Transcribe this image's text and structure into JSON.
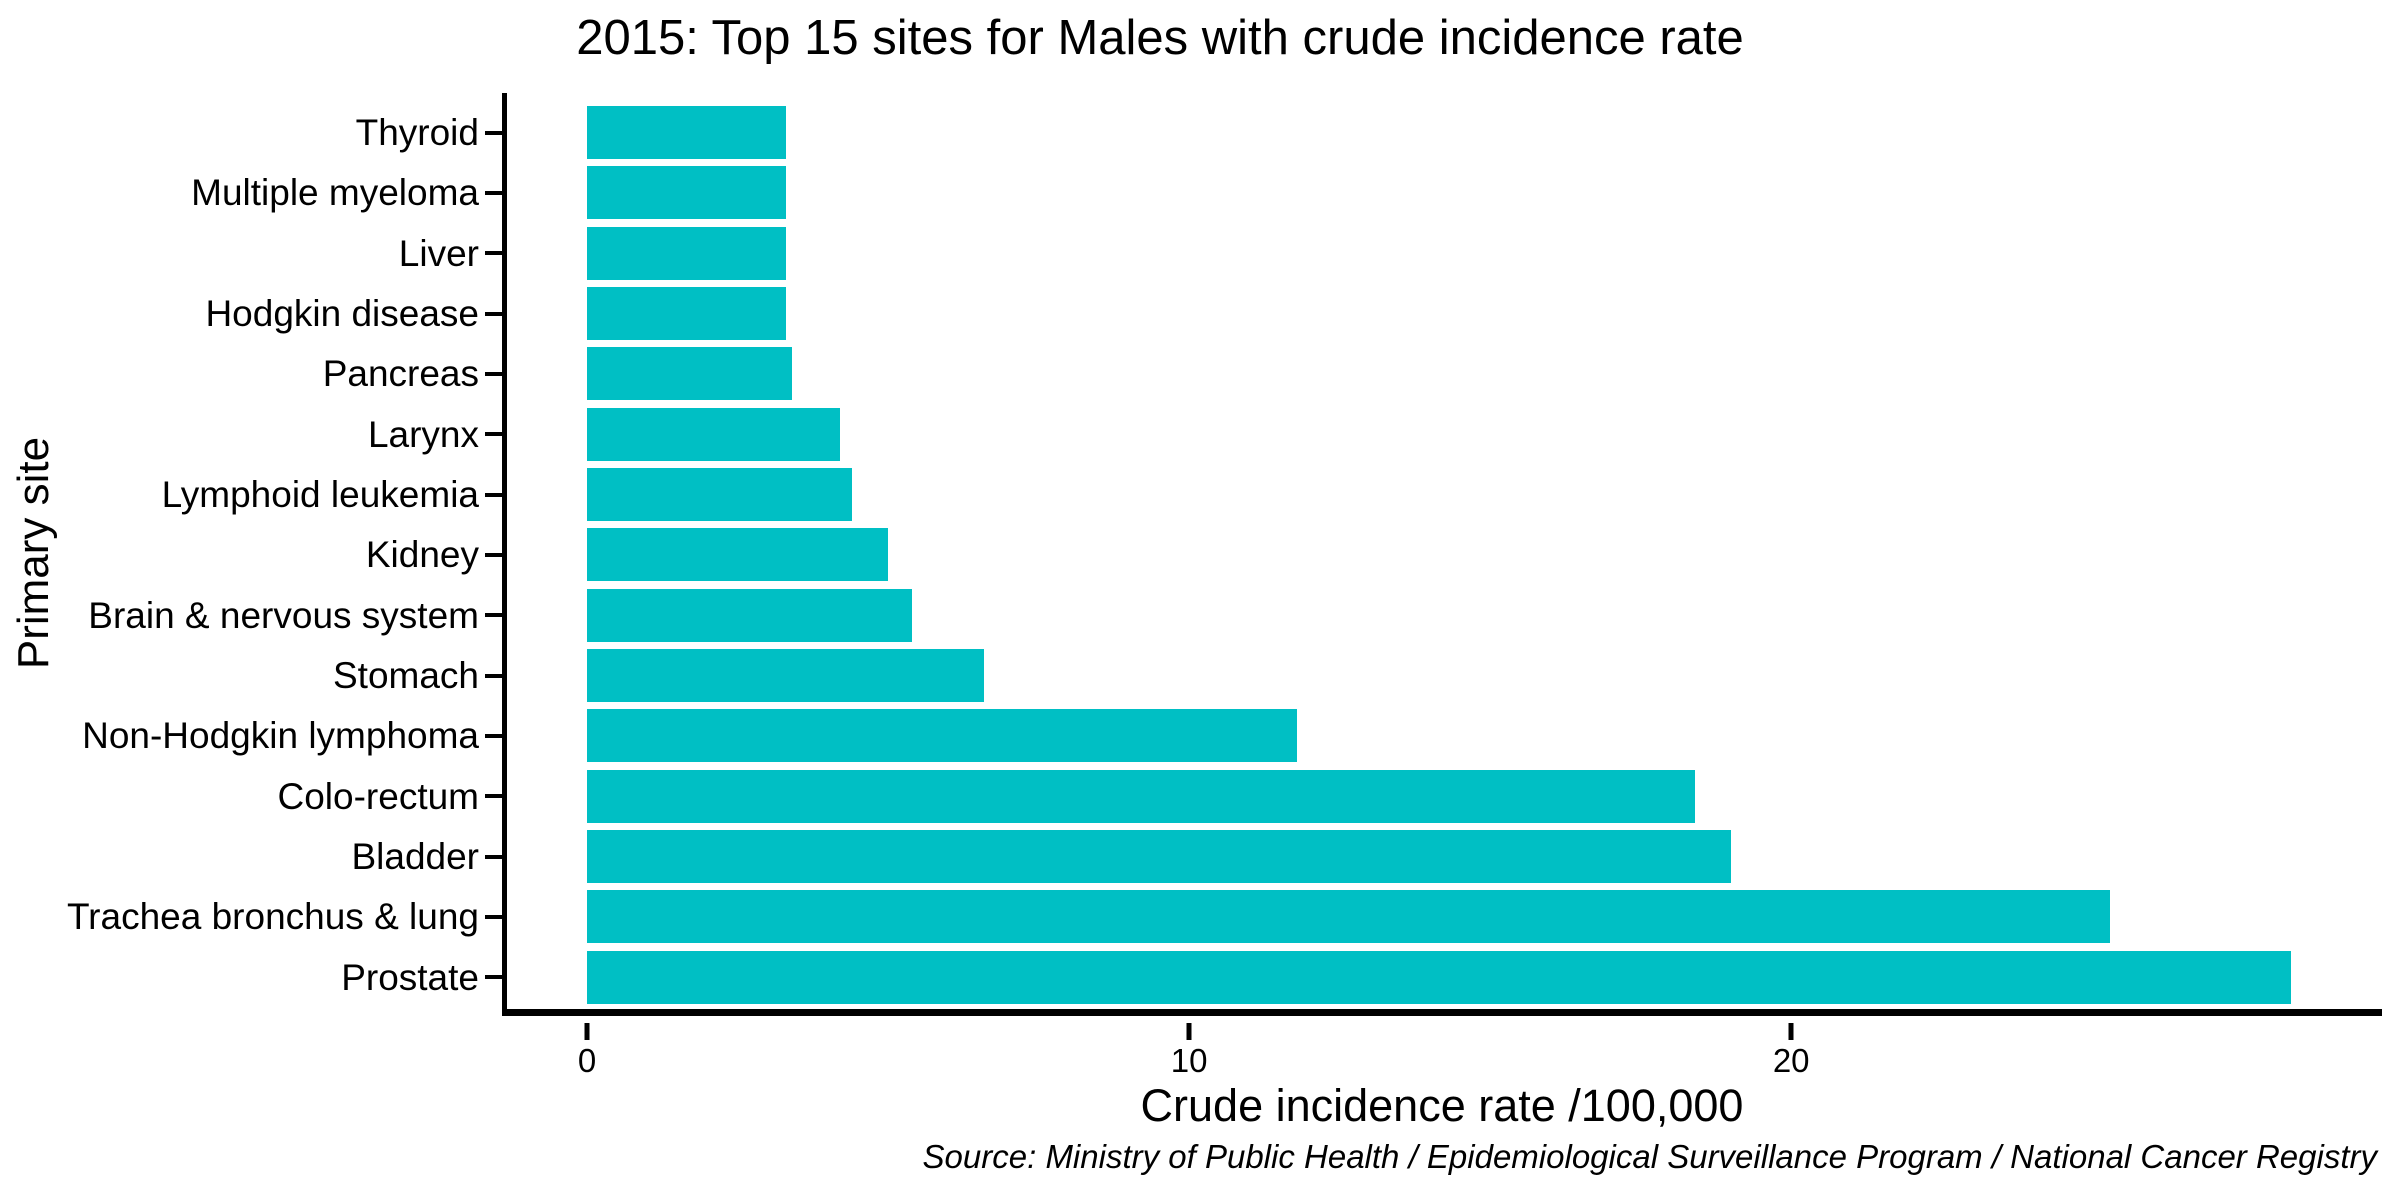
{
  "figure": {
    "title": "2015: Top 15 sites for Males with crude incidence rate",
    "source_note": "Source: Ministry of Public Health / Epidemiological Surveillance Program / National Cancer Registry"
  },
  "chart_data": {
    "type": "bar",
    "orientation": "horizontal",
    "title": "2015: Top 15 sites for Males with crude incidence rate",
    "xlabel": "Crude incidence rate /100,000",
    "ylabel": "Primary site",
    "categories": [
      "Thyroid",
      "Multiple myeloma",
      "Liver",
      "Hodgkin disease",
      "Pancreas",
      "Larynx",
      "Lymphoid leukemia",
      "Kidney",
      "Brain & nervous system",
      "Stomach",
      "Non-Hodgkin lymphoma",
      "Colo-rectum",
      "Bladder",
      "Trachea bronchus & lung",
      "Prostate"
    ],
    "values": [
      3.3,
      3.3,
      3.3,
      3.3,
      3.4,
      4.2,
      4.4,
      5.0,
      5.4,
      6.6,
      11.8,
      18.4,
      19.0,
      25.3,
      28.3
    ],
    "x_ticks": [
      0,
      10,
      20
    ],
    "xlim": [
      0,
      29.8
    ],
    "grid": false,
    "legend_position": "none",
    "bar_color": "#00BFC4",
    "axis_color": "#000000",
    "source": "Source: Ministry of Public Health / Epidemiological Surveillance Program / National Cancer Registry"
  }
}
